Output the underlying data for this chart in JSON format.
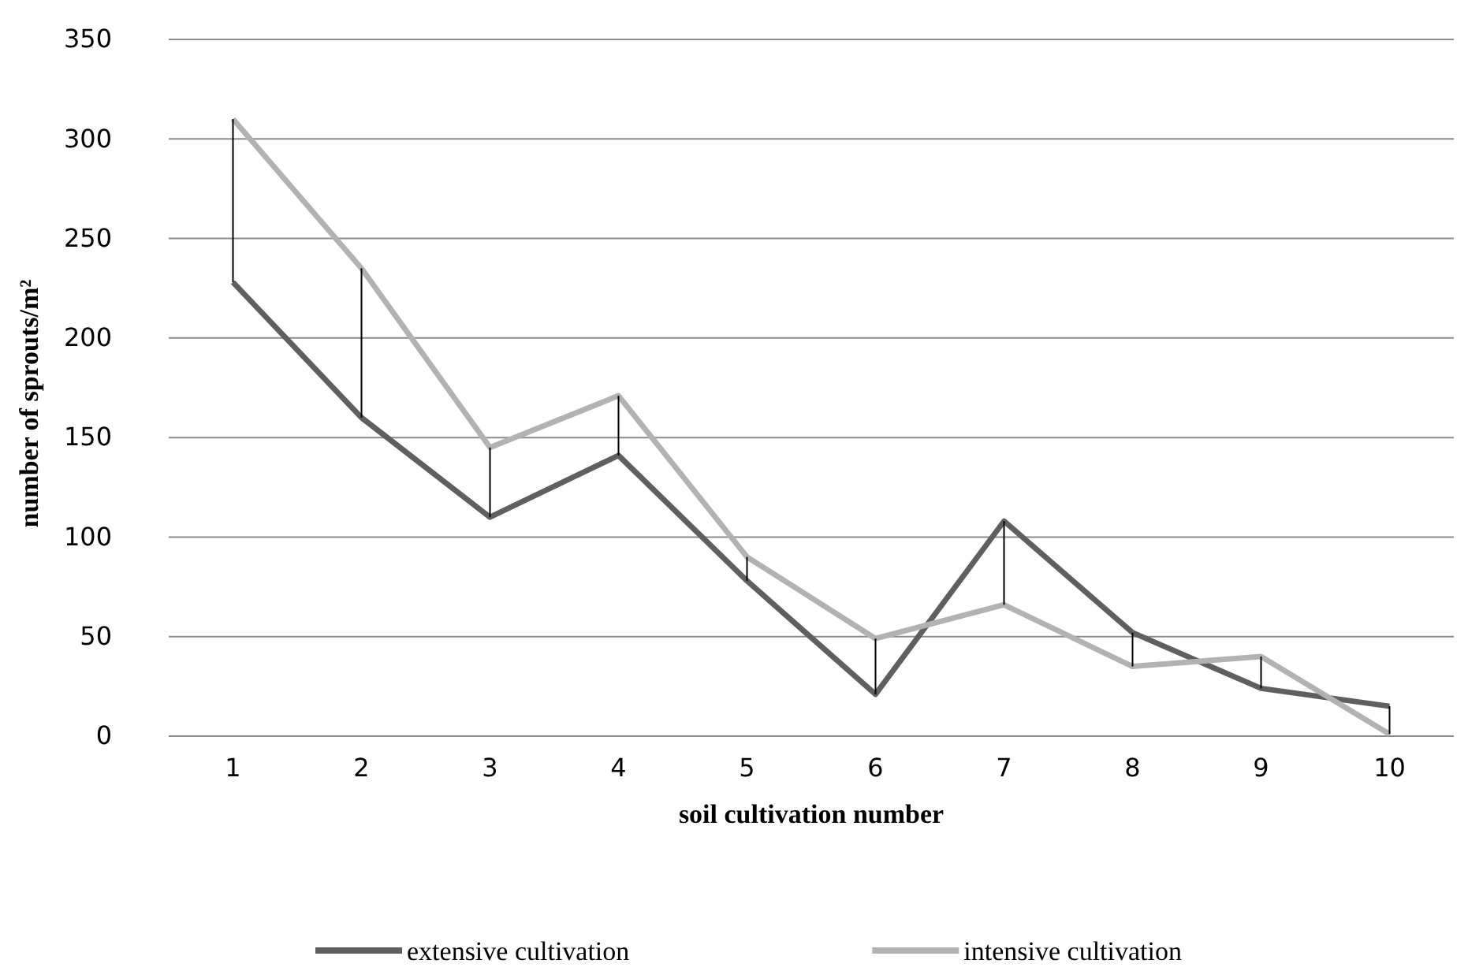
{
  "chart_data": {
    "type": "line",
    "xlabel": "soil cultivation number",
    "ylabel": "number of sprouts/m²",
    "categories": [
      "1",
      "2",
      "3",
      "4",
      "5",
      "6",
      "7",
      "8",
      "9",
      "10"
    ],
    "series": [
      {
        "name": "extensive cultivation",
        "color": "#5f5f5f",
        "values": [
          228,
          160,
          110,
          141,
          78,
          21,
          108,
          52,
          24,
          15
        ],
        "errors": [
          [
            228,
            310
          ],
          [
            160,
            235
          ],
          [
            110,
            145
          ],
          [
            141,
            171
          ],
          [
            78,
            90
          ],
          [
            21,
            49
          ],
          [
            66,
            108
          ],
          [
            35,
            52
          ],
          [
            24,
            40
          ],
          [
            1,
            15
          ]
        ]
      },
      {
        "name": "intensive cultivation",
        "color": "#b2b2b2",
        "values": [
          310,
          235,
          145,
          171,
          90,
          49,
          66,
          35,
          40,
          1
        ]
      }
    ],
    "ylim": [
      0,
      350
    ],
    "yticks": [
      0,
      50,
      100,
      150,
      200,
      250,
      300,
      350
    ],
    "grid": "y",
    "legend": "bottom",
    "marker": "none",
    "line_style": "solid"
  }
}
